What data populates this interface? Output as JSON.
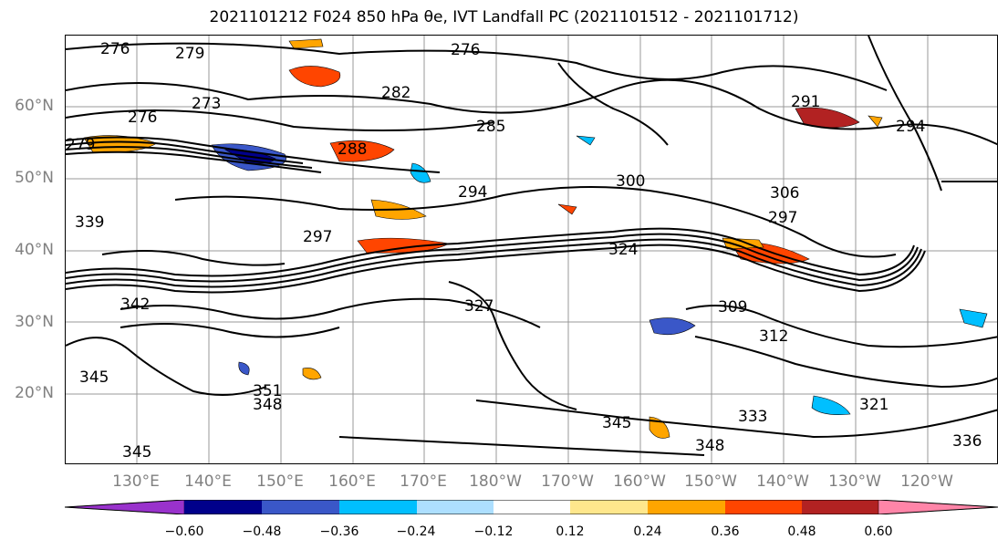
{
  "title": "2021101212 F024 850 hPa θe, IVT Landfall PC (2021101512 - 2021101712)",
  "map": {
    "lat_labels": [
      "60°N",
      "50°N",
      "40°N",
      "30°N",
      "20°N"
    ],
    "lat_values": [
      60,
      50,
      40,
      30,
      20
    ],
    "lon_labels": [
      "130°E",
      "140°E",
      "150°E",
      "160°E",
      "170°E",
      "180°W",
      "170°W",
      "160°W",
      "150°W",
      "140°W",
      "130°W",
      "120°W"
    ],
    "contour_labels": [
      "276",
      "279",
      "273",
      "276",
      "279",
      "282",
      "285",
      "288",
      "276",
      "294",
      "300",
      "306",
      "297",
      "297",
      "294",
      "324",
      "327",
      "309",
      "312",
      "345",
      "345",
      "351",
      "348",
      "348",
      "333",
      "321",
      "336",
      "339",
      "342",
      "345",
      "291"
    ]
  },
  "colorbar": {
    "ticks": [
      "−0.60",
      "−0.48",
      "−0.36",
      "−0.24",
      "−0.12",
      "0.12",
      "0.24",
      "0.36",
      "0.48",
      "0.60"
    ],
    "colors": [
      "#9932CC",
      "#00008B",
      "#3A57C8",
      "#00BFFF",
      "#ADDFFF",
      "#FFFFFF",
      "#FFE78C",
      "#FFA500",
      "#FF4500",
      "#B22222",
      "#FF85A8"
    ]
  }
}
